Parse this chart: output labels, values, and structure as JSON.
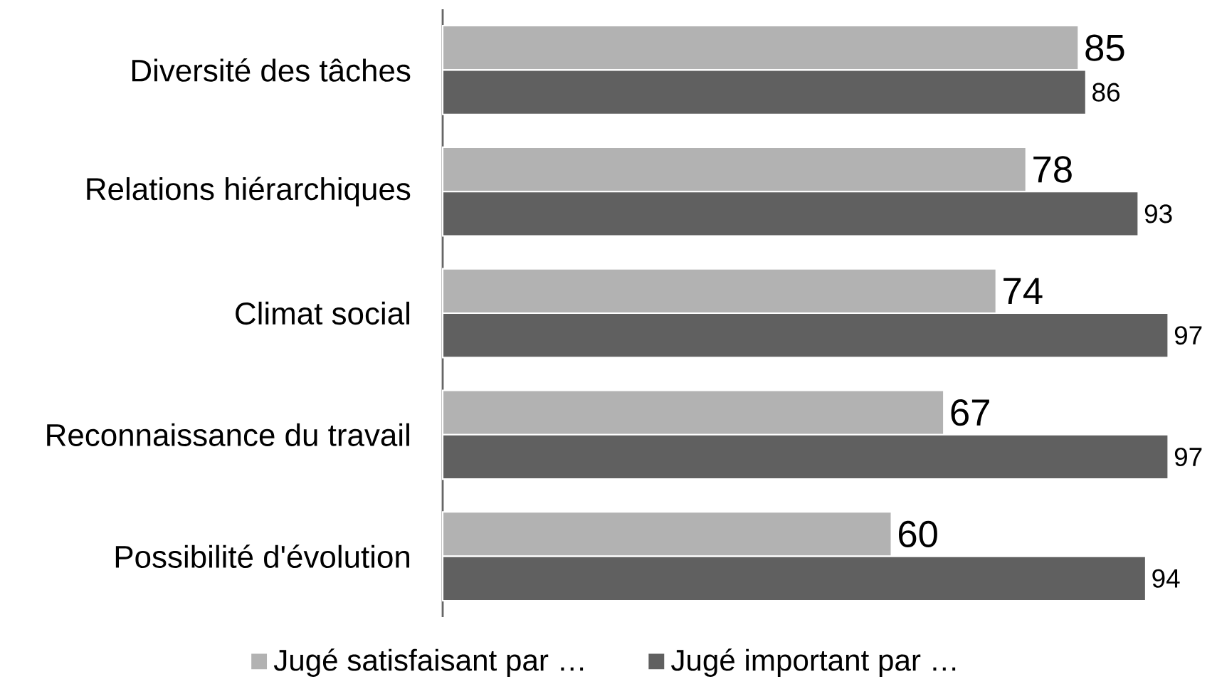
{
  "chart_data": {
    "type": "bar",
    "orientation": "horizontal",
    "categories": [
      "Diversité des tâches",
      "Relations hiérarchiques",
      "Climat social",
      "Reconnaissance du travail",
      "Possibilité d'évolution"
    ],
    "series": [
      {
        "name": "Jugé satisfaisant par …",
        "color": "#b2b2b2",
        "values": [
          85,
          78,
          74,
          67,
          60
        ]
      },
      {
        "name": "Jugé important par …",
        "color": "#606060",
        "values": [
          86,
          93,
          97,
          97,
          94
        ]
      }
    ],
    "data_labels": true,
    "legend": "bottom"
  }
}
